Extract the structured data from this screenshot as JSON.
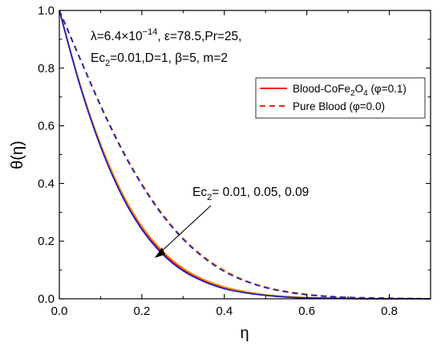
{
  "chart_data": {
    "type": "line",
    "xlabel": "η",
    "ylabel": "θ(η)",
    "xlim": [
      0.0,
      0.9
    ],
    "ylim": [
      0.0,
      1.0
    ],
    "xticks": [
      0.0,
      0.2,
      0.4,
      0.6,
      0.8
    ],
    "xtick_labels": [
      "0.0",
      "0.2",
      "0.4",
      "0.6",
      "0.8"
    ],
    "yticks": [
      0.0,
      0.2,
      0.4,
      0.6,
      0.8,
      1.0
    ],
    "ytick_labels": [
      "0.0",
      "0.2",
      "0.4",
      "0.6",
      "0.8",
      "1.0"
    ],
    "grid": false,
    "legend_position": "top-right",
    "parameters": {
      "line1": "λ=6.4×10",
      "line1_exp": "−14",
      "line1_rest": ", ε=78.5,Pr=25,",
      "line2": "Ec",
      "line2_sub": "2",
      "line2_rest": "=0.01,D=1, β=5, m=2"
    },
    "annotation": {
      "text": "Ec",
      "sub": "2",
      "rest": "= 0.01, 0.05, 0.09"
    },
    "legend": [
      {
        "label_main": "Blood-CoFe",
        "label_sub1": "2",
        "label_mid": "O",
        "label_sub2": "4",
        "label_end": " (φ=0.1)",
        "style": "solid",
        "color": "#ff0000"
      },
      {
        "label_main": "Pure Blood (φ=0.0)",
        "style": "dashed",
        "color": "#ff0000"
      }
    ],
    "series": [
      {
        "group": "φ=0.1",
        "style": "solid",
        "color": "#ff0000",
        "ec2": 0.01,
        "x": [
          0,
          0.05,
          0.1,
          0.15,
          0.2,
          0.25,
          0.3,
          0.35,
          0.4,
          0.45,
          0.5,
          0.55,
          0.6,
          0.65,
          0.7,
          0.75,
          0.8,
          0.85,
          0.9
        ],
        "y": [
          1.0,
          0.743,
          0.533,
          0.369,
          0.247,
          0.161,
          0.102,
          0.064,
          0.038,
          0.023,
          0.013,
          0.007,
          0.004,
          0.002,
          0.001,
          0,
          0,
          0,
          0
        ]
      },
      {
        "group": "φ=0.1",
        "style": "solid",
        "color": "#ff8c00",
        "ec2": 0.05,
        "x": [
          0,
          0.05,
          0.1,
          0.15,
          0.2,
          0.25,
          0.3,
          0.35,
          0.4,
          0.45,
          0.5,
          0.55,
          0.6,
          0.65,
          0.7,
          0.75,
          0.8,
          0.85,
          0.9
        ],
        "y": [
          1.0,
          0.745,
          0.537,
          0.374,
          0.252,
          0.166,
          0.106,
          0.067,
          0.041,
          0.025,
          0.014,
          0.008,
          0.004,
          0.002,
          0.001,
          0,
          0,
          0,
          0
        ]
      },
      {
        "group": "φ=0.1",
        "style": "solid",
        "color": "#1f1fbf",
        "ec2": 0.09,
        "x": [
          0,
          0.05,
          0.1,
          0.15,
          0.2,
          0.25,
          0.3,
          0.35,
          0.4,
          0.45,
          0.5,
          0.55,
          0.6,
          0.65,
          0.7,
          0.75,
          0.8,
          0.85,
          0.9
        ],
        "y": [
          1.0,
          0.74,
          0.528,
          0.363,
          0.241,
          0.155,
          0.097,
          0.06,
          0.035,
          0.021,
          0.012,
          0.006,
          0.003,
          0.002,
          0.001,
          0,
          0,
          0,
          0
        ]
      },
      {
        "group": "φ=0.0",
        "style": "dashed",
        "color": "#ff0000",
        "ec2": 0.01,
        "x": [
          0,
          0.05,
          0.1,
          0.15,
          0.2,
          0.25,
          0.3,
          0.35,
          0.4,
          0.45,
          0.5,
          0.55,
          0.6,
          0.65,
          0.7,
          0.75,
          0.8,
          0.85,
          0.9
        ],
        "y": [
          1.0,
          0.834,
          0.671,
          0.524,
          0.398,
          0.293,
          0.209,
          0.145,
          0.097,
          0.063,
          0.04,
          0.025,
          0.015,
          0.009,
          0.005,
          0.003,
          0.002,
          0.001,
          0
        ]
      },
      {
        "group": "φ=0.0",
        "style": "dashed",
        "color": "#ff8c00",
        "ec2": 0.05,
        "x": [
          0,
          0.05,
          0.1,
          0.15,
          0.2,
          0.25,
          0.3,
          0.35,
          0.4,
          0.45,
          0.5,
          0.55,
          0.6,
          0.65,
          0.7,
          0.75,
          0.8,
          0.85,
          0.9
        ],
        "y": [
          1.0,
          0.835,
          0.673,
          0.526,
          0.4,
          0.295,
          0.211,
          0.147,
          0.099,
          0.064,
          0.041,
          0.026,
          0.016,
          0.009,
          0.005,
          0.003,
          0.002,
          0.001,
          0
        ]
      },
      {
        "group": "φ=0.0",
        "style": "dashed",
        "color": "#1f1fbf",
        "ec2": 0.09,
        "x": [
          0,
          0.05,
          0.1,
          0.15,
          0.2,
          0.25,
          0.3,
          0.35,
          0.4,
          0.45,
          0.5,
          0.55,
          0.6,
          0.65,
          0.7,
          0.75,
          0.8,
          0.85,
          0.9
        ],
        "y": [
          1.0,
          0.833,
          0.669,
          0.521,
          0.395,
          0.29,
          0.207,
          0.143,
          0.095,
          0.062,
          0.039,
          0.024,
          0.014,
          0.008,
          0.005,
          0.003,
          0.002,
          0.001,
          0
        ]
      }
    ]
  }
}
